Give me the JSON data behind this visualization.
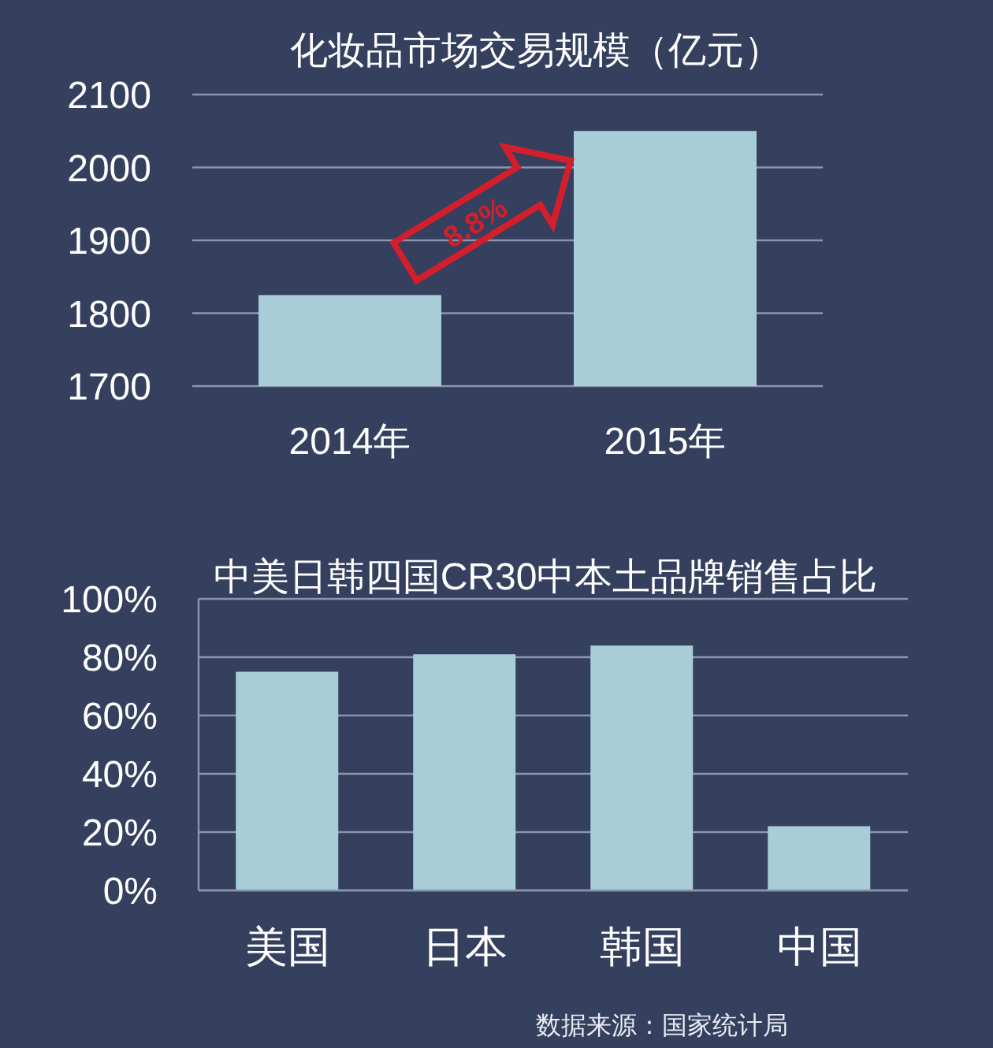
{
  "chart_data": [
    {
      "type": "bar",
      "title": "化妆品市场交易规模（亿元）",
      "categories": [
        "2014年",
        "2015年"
      ],
      "values": [
        1825,
        2050
      ],
      "color": "#a9cdd8",
      "ylim": [
        1700,
        2100
      ],
      "yticks": [
        1700,
        1800,
        1900,
        2000,
        2100
      ],
      "grid": "y",
      "annotations": [
        "8.8%"
      ]
    },
    {
      "type": "bar",
      "title": "中美日韩四国CR30中本土品牌销售占比",
      "categories": [
        "美国",
        "日本",
        "韩国",
        "中国"
      ],
      "values": [
        75,
        81,
        84,
        22
      ],
      "color": "#a9cdd8",
      "ylim": [
        0,
        100
      ],
      "yticks": [
        {
          "value": 0,
          "label": "0%"
        },
        {
          "value": 20,
          "label": "20%"
        },
        {
          "value": 40,
          "label": "40%"
        },
        {
          "value": 60,
          "label": "60%"
        },
        {
          "value": 80,
          "label": "80%"
        },
        {
          "value": 100,
          "label": "100%"
        }
      ],
      "grid": "y",
      "annotations": [
        "数据来源：国家统计局"
      ]
    }
  ]
}
